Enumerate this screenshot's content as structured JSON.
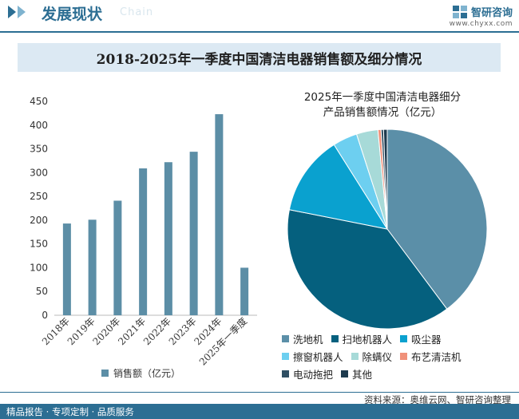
{
  "header": {
    "section_title": "发展现状",
    "watermark_en": "Chain",
    "brand_name": "智研咨询",
    "brand_url": "www.chyxx.com"
  },
  "title": "2018-2025年一季度中国清洁电器销售额及细分情况",
  "chart_data": [
    {
      "type": "bar",
      "categories": [
        "2018年",
        "2019年",
        "2020年",
        "2021年",
        "2022年",
        "2023年",
        "2024年",
        "2025年一季度"
      ],
      "series": [
        {
          "name": "销售额（亿元）",
          "values": [
            193,
            201,
            241,
            309,
            322,
            344,
            423,
            100
          ]
        }
      ],
      "ylim": [
        0,
        450
      ],
      "yticks": [
        0,
        50,
        100,
        150,
        200,
        250,
        300,
        350,
        400,
        450
      ],
      "color": "#5c8ea6",
      "legend_label": "销售额（亿元）"
    },
    {
      "type": "pie",
      "title_lines": [
        "2025年一季度中国清洁电器细分",
        "产品销售额情况（亿元）"
      ],
      "slices": [
        {
          "label": "洗地机",
          "value": 40.0,
          "color": "#5b8fa8"
        },
        {
          "label": "扫地机器人",
          "value": 38.5,
          "color": "#05607e"
        },
        {
          "label": "吸尘器",
          "value": 13.0,
          "color": "#0aa1cf"
        },
        {
          "label": "擦窗机器人",
          "value": 4.0,
          "color": "#6dcff0"
        },
        {
          "label": "除螨仪",
          "value": 3.5,
          "color": "#a7dad8"
        },
        {
          "label": "布艺清洁机",
          "value": 0.5,
          "color": "#f0917a"
        },
        {
          "label": "电动拖把",
          "value": 0.4,
          "color": "#2f4f63"
        },
        {
          "label": "其他",
          "value": 0.6,
          "color": "#1d3a4e"
        }
      ]
    }
  ],
  "footer": {
    "source": "资料来源：奥维云网、智研咨询整理",
    "tagline": "精品报告 · 专项定制 · 品质服务"
  }
}
